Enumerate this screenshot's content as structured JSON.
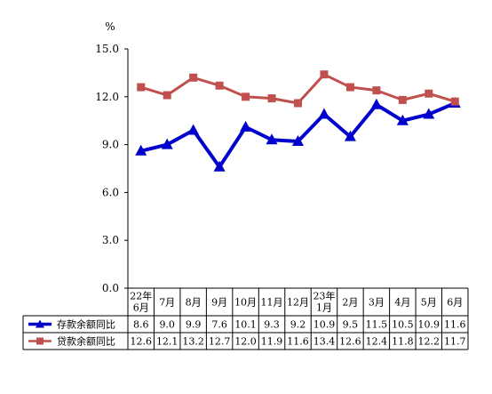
{
  "chart_data": {
    "type": "line",
    "unit_label": "%",
    "ylim": [
      0,
      15
    ],
    "yticks": [
      "0.0",
      "3.0",
      "6.0",
      "9.0",
      "12.0",
      "15.0"
    ],
    "categories": [
      [
        "22年",
        "6月"
      ],
      [
        "7月"
      ],
      [
        "8月"
      ],
      [
        "9月"
      ],
      [
        "10月"
      ],
      [
        "11月"
      ],
      [
        "12月"
      ],
      [
        "23年",
        "1月"
      ],
      [
        "2月"
      ],
      [
        "3月"
      ],
      [
        "4月"
      ],
      [
        "5月"
      ],
      [
        "6月"
      ]
    ],
    "series": [
      {
        "name": "存款余额同比",
        "color": "#0000CC",
        "marker": "triangle",
        "values": [
          8.6,
          9.0,
          9.9,
          7.6,
          10.1,
          9.3,
          9.2,
          10.9,
          9.5,
          11.5,
          10.5,
          10.9,
          11.6
        ],
        "labels": [
          "8.6",
          "9.0",
          "9.9",
          "7.6",
          "10.1",
          "9.3",
          "9.2",
          "10.9",
          "9.5",
          "11.5",
          "10.5",
          "10.9",
          "11.6"
        ]
      },
      {
        "name": "贷款余额同比",
        "color": "#C0504D",
        "marker": "square",
        "values": [
          12.6,
          12.1,
          13.2,
          12.7,
          12.0,
          11.9,
          11.6,
          13.4,
          12.6,
          12.4,
          11.8,
          12.2,
          11.7
        ],
        "labels": [
          "12.6",
          "12.1",
          "13.2",
          "12.7",
          "12.0",
          "11.9",
          "11.6",
          "13.4",
          "12.6",
          "12.4",
          "11.8",
          "12.2",
          "11.7"
        ]
      }
    ],
    "grid": false,
    "legend": "data-table-left"
  }
}
